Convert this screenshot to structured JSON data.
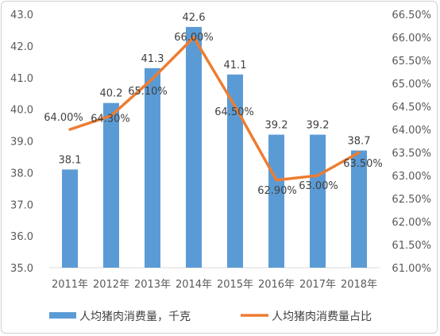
{
  "chart_data": {
    "type": "bar+line",
    "categories": [
      "2011年",
      "2012年",
      "2013年",
      "2014年",
      "2015年",
      "2016年",
      "2017年",
      "2018年"
    ],
    "series": [
      {
        "name": "人均猪肉消费量，千克",
        "type": "bar",
        "axis": "left",
        "color": "#5b9bd5",
        "values": [
          38.1,
          40.2,
          41.3,
          42.6,
          41.1,
          39.2,
          39.2,
          38.7
        ],
        "labels": [
          "38.1",
          "40.2",
          "41.3",
          "42.6",
          "41.1",
          "39.2",
          "39.2",
          "38.7"
        ]
      },
      {
        "name": "人均猪肉消费量占比",
        "type": "line",
        "axis": "right",
        "color": "#ed7d31",
        "values": [
          64.0,
          64.3,
          65.1,
          66.0,
          64.5,
          62.9,
          63.0,
          63.5
        ],
        "labels": [
          "64.00%",
          "64.30%",
          "65.10%",
          "66.00%",
          "64.50%",
          "62.90%",
          "63.00%",
          "63.50%"
        ]
      }
    ],
    "y_left": {
      "min": 35.0,
      "max": 43.0,
      "step": 1.0,
      "ticks": [
        "35.0",
        "36.0",
        "37.0",
        "38.0",
        "39.0",
        "40.0",
        "41.0",
        "42.0",
        "43.0"
      ]
    },
    "y_right": {
      "min": 61.0,
      "max": 66.5,
      "step": 0.5,
      "ticks": [
        "61.00%",
        "61.50%",
        "62.00%",
        "62.50%",
        "63.00%",
        "63.50%",
        "64.00%",
        "64.50%",
        "65.00%",
        "65.50%",
        "66.00%",
        "66.50%"
      ]
    },
    "grid": false,
    "legend_position": "bottom"
  }
}
